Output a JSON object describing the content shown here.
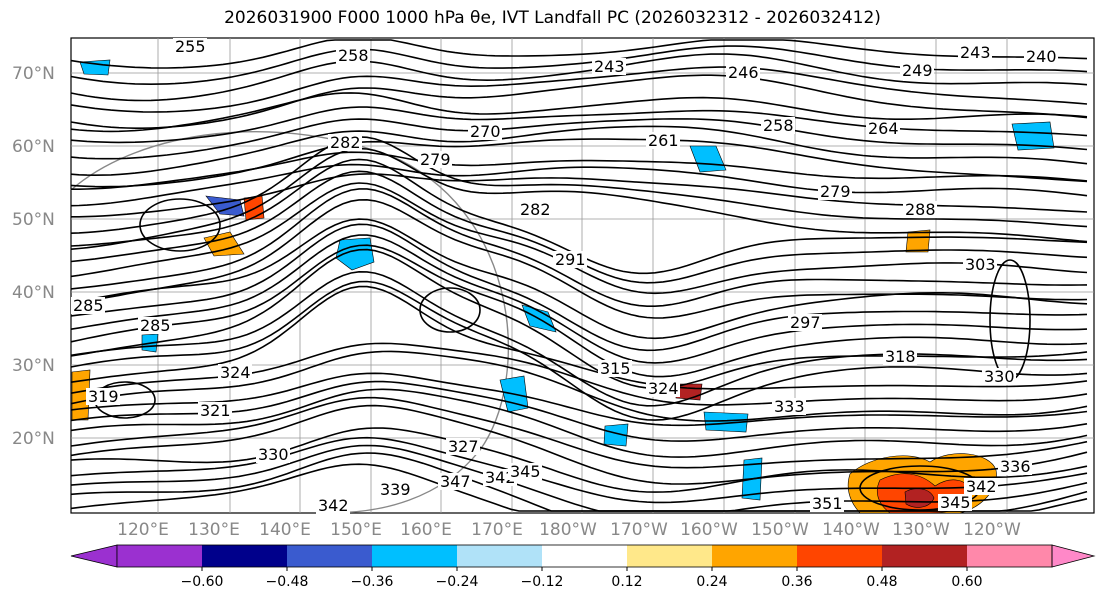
{
  "title": "2026031900 F000 1000 hPa θe, IVT Landfall PC (2026032312 - 2026032412)",
  "lat_labels": [
    "70°N",
    "60°N",
    "50°N",
    "40°N",
    "30°N",
    "20°N"
  ],
  "lon_labels": [
    "120°E",
    "130°E",
    "140°E",
    "150°E",
    "160°E",
    "170°E",
    "180°W",
    "170°W",
    "160°W",
    "150°W",
    "140°W",
    "130°W",
    "120°W"
  ],
  "colorbar": {
    "ticks": [
      "−0.60",
      "−0.48",
      "−0.36",
      "−0.24",
      "−0.12",
      "0.12",
      "0.24",
      "0.36",
      "0.48",
      "0.60"
    ],
    "colors": [
      "#9b30d0",
      "#00008b",
      "#3a5bcf",
      "#00bfff",
      "#b0e2f8",
      "#ffffff",
      "#ffe88a",
      "#ffa500",
      "#ff4500",
      "#b22222",
      "#ff88aa",
      "#ff88c8"
    ]
  },
  "contour_labels": [
    "255",
    "258",
    "243",
    "246",
    "249",
    "243",
    "240",
    "282",
    "279",
    "270",
    "261",
    "258",
    "264",
    "279",
    "282",
    "288",
    "291",
    "285",
    "285",
    "324",
    "321",
    "319",
    "315",
    "324",
    "318",
    "327",
    "330",
    "339",
    "342",
    "347",
    "342",
    "345",
    "351",
    "345",
    "342",
    "336",
    "333",
    "303",
    "330",
    "297"
  ],
  "field_colors": {
    "negative": "#00bfff",
    "negative_light": "#b0e2f8",
    "positive_low": "#ffa500",
    "positive_mid": "#ff4500",
    "positive_high": "#b22222"
  }
}
